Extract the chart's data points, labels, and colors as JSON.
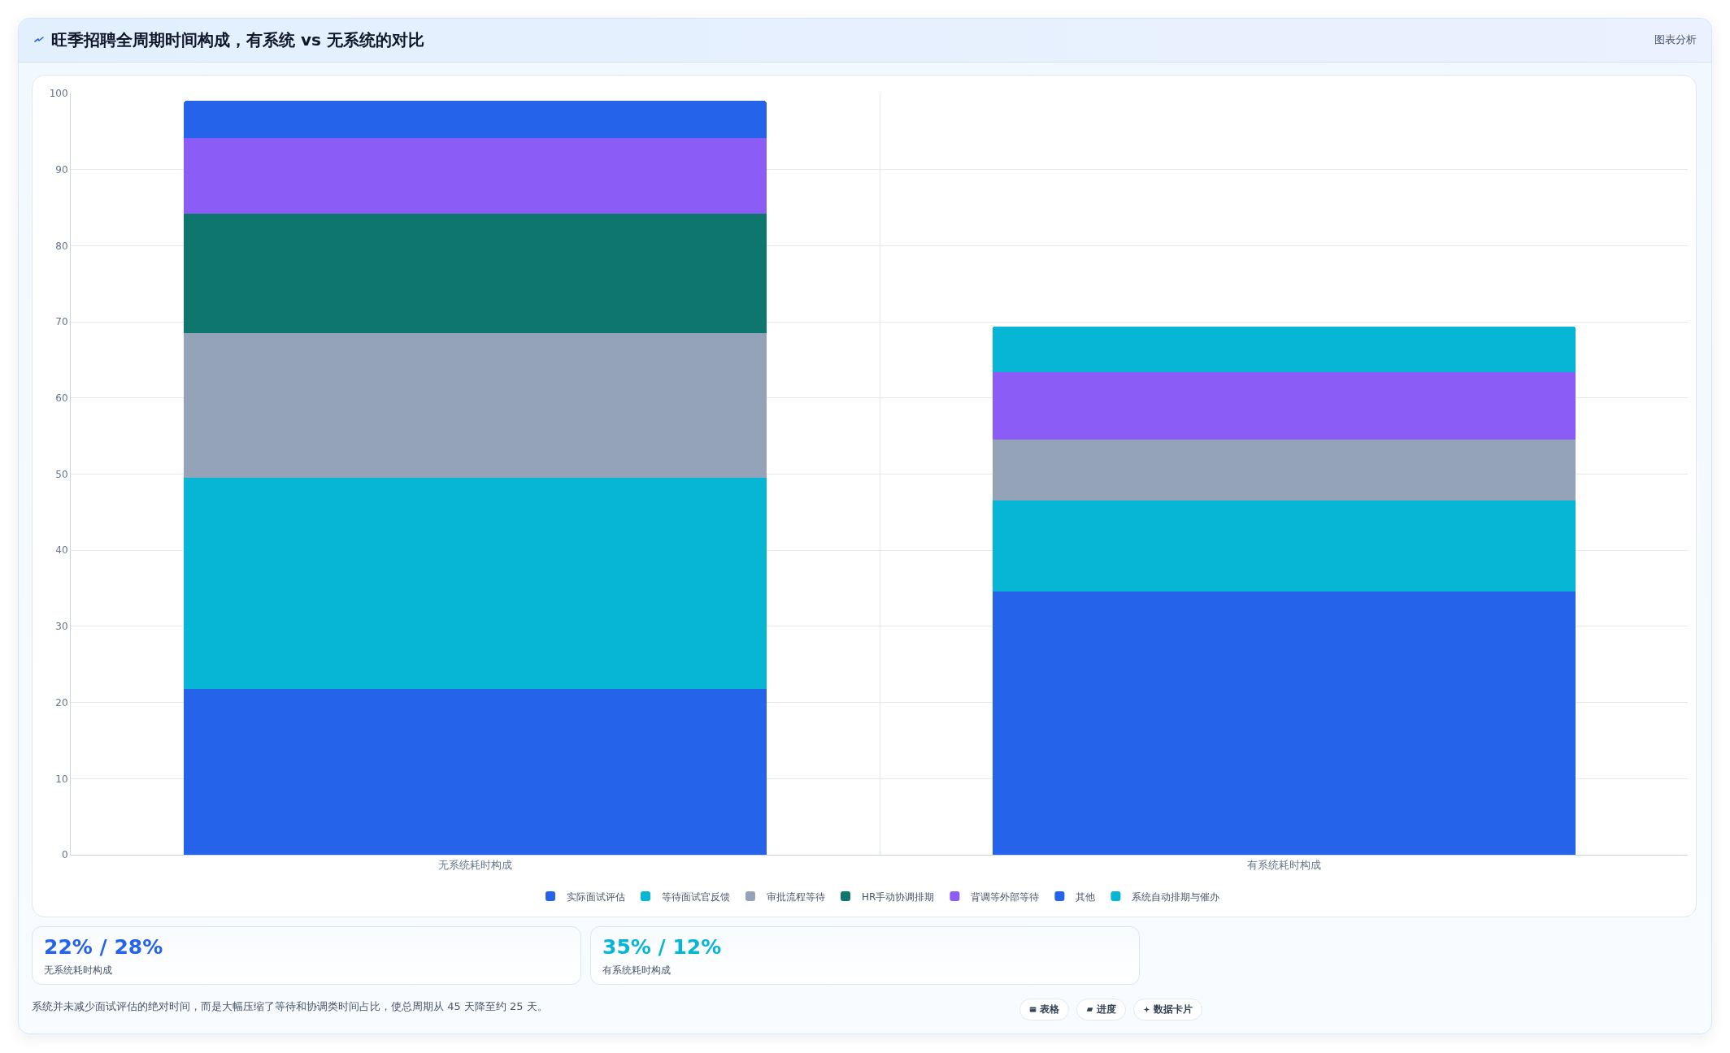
{
  "chart_data": {
    "type": "bar",
    "title": "旺季招聘全周期时间构成，有系统 vs 无系统的对比",
    "categories": [
      "无系统耗时构成",
      "有系统耗时构成"
    ],
    "series": [
      {
        "name": "实际面试评估",
        "color": "#2563eb",
        "values": [
          21.8,
          34.6
        ]
      },
      {
        "name": "等待面试官反馈",
        "color": "#06b6d4",
        "values": [
          27.7,
          11.9
        ]
      },
      {
        "name": "审批流程等待",
        "color": "#94a3b8",
        "values": [
          19,
          8
        ]
      },
      {
        "name": "HR手动协调排期",
        "color": "#0f766e",
        "values": [
          15.7,
          null
        ]
      },
      {
        "name": "背调等外部等待",
        "color": "#8b5cf6",
        "values": [
          9.9,
          8.9
        ]
      },
      {
        "name": "其他",
        "color": "#2563eb",
        "values": [
          4.9,
          null
        ]
      },
      {
        "name": "系统自动排期与催办",
        "color": "#06b6d4",
        "values": [
          null,
          6
        ]
      }
    ],
    "stacked": true,
    "ylim": [
      0,
      100
    ],
    "yticks": [
      0,
      10,
      20,
      30,
      40,
      50,
      60,
      70,
      80,
      90,
      100
    ],
    "grid": true,
    "legend": "bottom",
    "annotations": [
      "图表分析",
      "22% / 28%",
      "无系统耗时构成",
      "35% / 12%",
      "有系统耗时构成",
      "系统并未减少面试评估的绝对时间，而是大幅压缩了等待和协调类时间占比，使总周期从 45 天降至约 25 天。",
      "表格",
      "进度",
      "数据卡片"
    ]
  }
}
